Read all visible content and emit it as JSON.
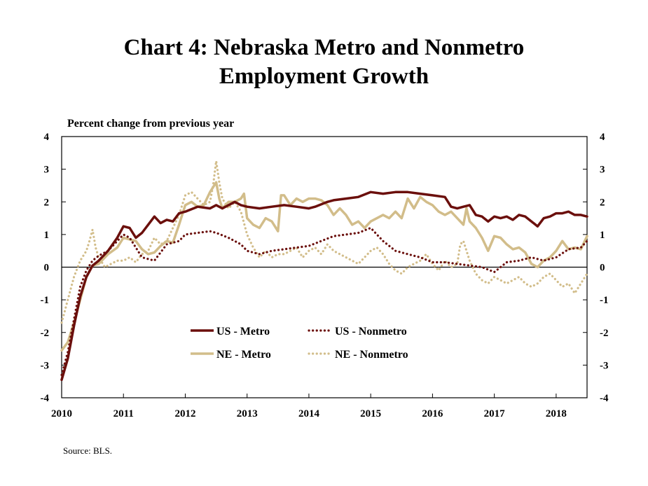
{
  "title_line1": "Chart 4: Nebraska Metro and Nonmetro",
  "title_line2": "Employment Growth",
  "unit_label": "Percent change from previous year",
  "source": "Source: BLS.",
  "colors": {
    "us_metro": "#6b0f0c",
    "us_nonmetro": "#6b0f0c",
    "ne_metro": "#d2bd8a",
    "ne_nonmetro": "#d2bd8a"
  },
  "chart_data": {
    "type": "line",
    "title": "Chart 4: Nebraska Metro and Nonmetro Employment Growth",
    "ylabel": "Percent change from previous year",
    "xlabel": "",
    "x_ticks": [
      "2010",
      "2011",
      "2012",
      "2013",
      "2014",
      "2015",
      "2016",
      "2017",
      "2018"
    ],
    "y_ticks": [
      -4,
      -3,
      -2,
      -1,
      0,
      1,
      2,
      3,
      4
    ],
    "ylim": [
      -4,
      4
    ],
    "xlim": [
      2010,
      2018.5
    ],
    "grid": false,
    "legend_position": "lower-center",
    "series": [
      {
        "name": "US - Metro",
        "style": "solid",
        "x": [
          2010.0,
          2010.1,
          2010.2,
          2010.3,
          2010.4,
          2010.5,
          2010.6,
          2010.75,
          2010.9,
          2011.0,
          2011.1,
          2011.2,
          2011.3,
          2011.4,
          2011.5,
          2011.6,
          2011.7,
          2011.8,
          2011.9,
          2012.0,
          2012.2,
          2012.4,
          2012.5,
          2012.6,
          2012.8,
          2012.9,
          2013.0,
          2013.2,
          2013.4,
          2013.6,
          2013.8,
          2014.0,
          2014.1,
          2014.3,
          2014.4,
          2014.6,
          2014.8,
          2015.0,
          2015.2,
          2015.4,
          2015.6,
          2015.8,
          2016.0,
          2016.2,
          2016.3,
          2016.4,
          2016.5,
          2016.6,
          2016.7,
          2016.8,
          2016.9,
          2017.0,
          2017.1,
          2017.2,
          2017.3,
          2017.4,
          2017.5,
          2017.6,
          2017.7,
          2017.8,
          2017.9,
          2018.0,
          2018.1,
          2018.2,
          2018.3,
          2018.4,
          2018.5
        ],
        "y": [
          -3.45,
          -2.8,
          -1.8,
          -0.9,
          -0.3,
          0.05,
          0.2,
          0.5,
          0.9,
          1.25,
          1.2,
          0.9,
          1.05,
          1.3,
          1.55,
          1.35,
          1.45,
          1.4,
          1.65,
          1.7,
          1.85,
          1.8,
          1.9,
          1.8,
          2.0,
          1.9,
          1.85,
          1.8,
          1.85,
          1.9,
          1.85,
          1.8,
          1.85,
          2.0,
          2.05,
          2.1,
          2.15,
          2.3,
          2.25,
          2.3,
          2.3,
          2.25,
          2.2,
          2.15,
          1.85,
          1.8,
          1.85,
          1.9,
          1.6,
          1.55,
          1.4,
          1.55,
          1.5,
          1.55,
          1.45,
          1.6,
          1.55,
          1.4,
          1.25,
          1.5,
          1.55,
          1.65,
          1.65,
          1.7,
          1.6,
          1.6,
          1.55
        ]
      },
      {
        "name": "US - Nonmetro",
        "style": "dotted",
        "x": [
          2010.0,
          2010.1,
          2010.2,
          2010.3,
          2010.4,
          2010.5,
          2010.6,
          2010.75,
          2010.9,
          2011.0,
          2011.1,
          2011.2,
          2011.3,
          2011.5,
          2011.7,
          2011.9,
          2012.0,
          2012.2,
          2012.4,
          2012.5,
          2012.7,
          2012.9,
          2013.0,
          2013.2,
          2013.4,
          2013.6,
          2013.8,
          2014.0,
          2014.2,
          2014.4,
          2014.6,
          2014.8,
          2015.0,
          2015.2,
          2015.4,
          2015.6,
          2015.8,
          2016.0,
          2016.2,
          2016.4,
          2016.6,
          2016.8,
          2017.0,
          2017.2,
          2017.4,
          2017.6,
          2017.8,
          2018.0,
          2018.2,
          2018.4,
          2018.5
        ],
        "y": [
          -3.3,
          -2.6,
          -1.6,
          -0.6,
          -0.1,
          0.2,
          0.35,
          0.5,
          0.8,
          1.0,
          0.9,
          0.6,
          0.3,
          0.2,
          0.7,
          0.8,
          1.0,
          1.05,
          1.1,
          1.05,
          0.9,
          0.7,
          0.5,
          0.4,
          0.5,
          0.55,
          0.6,
          0.65,
          0.8,
          0.95,
          1.0,
          1.05,
          1.2,
          0.8,
          0.5,
          0.4,
          0.3,
          0.15,
          0.15,
          0.1,
          0.05,
          0.0,
          -0.15,
          0.15,
          0.2,
          0.3,
          0.2,
          0.3,
          0.55,
          0.6,
          0.8
        ]
      },
      {
        "name": "NE - Metro",
        "style": "solid",
        "x": [
          2010.0,
          2010.1,
          2010.2,
          2010.3,
          2010.4,
          2010.5,
          2010.6,
          2010.75,
          2010.9,
          2011.0,
          2011.1,
          2011.2,
          2011.3,
          2011.4,
          2011.5,
          2011.6,
          2011.7,
          2011.8,
          2011.9,
          2012.0,
          2012.1,
          2012.2,
          2012.3,
          2012.4,
          2012.5,
          2012.55,
          2012.6,
          2012.7,
          2012.8,
          2012.9,
          2012.95,
          2013.0,
          2013.1,
          2013.2,
          2013.3,
          2013.4,
          2013.5,
          2013.55,
          2013.6,
          2013.7,
          2013.8,
          2013.9,
          2014.0,
          2014.1,
          2014.2,
          2014.3,
          2014.4,
          2014.5,
          2014.6,
          2014.7,
          2014.8,
          2014.9,
          2015.0,
          2015.1,
          2015.2,
          2015.3,
          2015.4,
          2015.5,
          2015.6,
          2015.7,
          2015.8,
          2015.9,
          2016.0,
          2016.1,
          2016.2,
          2016.3,
          2016.4,
          2016.5,
          2016.55,
          2016.6,
          2016.7,
          2016.8,
          2016.9,
          2017.0,
          2017.1,
          2017.2,
          2017.3,
          2017.4,
          2017.5,
          2017.6,
          2017.7,
          2017.8,
          2017.9,
          2018.0,
          2018.1,
          2018.2,
          2018.3,
          2018.4,
          2018.5
        ],
        "y": [
          -2.55,
          -2.3,
          -1.7,
          -1.0,
          -0.3,
          0.05,
          0.1,
          0.4,
          0.6,
          0.9,
          0.85,
          0.8,
          0.55,
          0.4,
          0.45,
          0.65,
          0.8,
          0.75,
          1.3,
          1.9,
          2.0,
          1.85,
          1.9,
          2.3,
          2.6,
          2.1,
          1.8,
          2.0,
          2.0,
          2.1,
          2.25,
          1.5,
          1.3,
          1.2,
          1.5,
          1.4,
          1.1,
          2.2,
          2.2,
          1.9,
          2.1,
          2.0,
          2.1,
          2.1,
          2.05,
          1.9,
          1.6,
          1.8,
          1.6,
          1.3,
          1.4,
          1.2,
          1.4,
          1.5,
          1.6,
          1.5,
          1.7,
          1.5,
          2.1,
          1.8,
          2.15,
          2.0,
          1.9,
          1.7,
          1.6,
          1.7,
          1.5,
          1.3,
          1.8,
          1.4,
          1.2,
          0.9,
          0.5,
          0.95,
          0.9,
          0.7,
          0.55,
          0.6,
          0.45,
          0.1,
          0.0,
          0.2,
          0.3,
          0.5,
          0.8,
          0.55,
          0.6,
          0.55,
          0.95
        ]
      },
      {
        "name": "NE - Nonmetro",
        "style": "dotted",
        "x": [
          2010.0,
          2010.1,
          2010.2,
          2010.3,
          2010.4,
          2010.45,
          2010.5,
          2010.55,
          2010.6,
          2010.7,
          2010.8,
          2010.9,
          2011.0,
          2011.1,
          2011.2,
          2011.3,
          2011.4,
          2011.5,
          2011.6,
          2011.7,
          2011.8,
          2011.9,
          2012.0,
          2012.1,
          2012.2,
          2012.3,
          2012.4,
          2012.45,
          2012.5,
          2012.55,
          2012.6,
          2012.7,
          2012.8,
          2012.9,
          2013.0,
          2013.1,
          2013.2,
          2013.3,
          2013.4,
          2013.5,
          2013.6,
          2013.7,
          2013.8,
          2013.9,
          2014.0,
          2014.1,
          2014.2,
          2014.3,
          2014.4,
          2014.5,
          2014.6,
          2014.7,
          2014.8,
          2014.9,
          2015.0,
          2015.1,
          2015.2,
          2015.3,
          2015.4,
          2015.5,
          2015.6,
          2015.7,
          2015.8,
          2015.9,
          2016.0,
          2016.1,
          2016.2,
          2016.3,
          2016.4,
          2016.45,
          2016.5,
          2016.6,
          2016.7,
          2016.8,
          2016.9,
          2017.0,
          2017.1,
          2017.2,
          2017.3,
          2017.4,
          2017.5,
          2017.6,
          2017.7,
          2017.8,
          2017.9,
          2018.0,
          2018.1,
          2018.2,
          2018.3,
          2018.4,
          2018.5
        ],
        "y": [
          -1.7,
          -1.0,
          -0.3,
          0.2,
          0.5,
          0.8,
          1.15,
          0.6,
          0.3,
          0.0,
          0.1,
          0.2,
          0.2,
          0.3,
          0.15,
          0.4,
          0.5,
          0.9,
          0.7,
          0.8,
          1.2,
          1.6,
          2.2,
          2.3,
          2.1,
          1.9,
          2.0,
          2.5,
          3.25,
          2.6,
          2.1,
          1.8,
          2.0,
          1.7,
          1.0,
          0.6,
          0.3,
          0.5,
          0.3,
          0.4,
          0.4,
          0.5,
          0.6,
          0.3,
          0.5,
          0.6,
          0.4,
          0.7,
          0.5,
          0.4,
          0.3,
          0.2,
          0.1,
          0.3,
          0.5,
          0.6,
          0.4,
          0.1,
          -0.1,
          -0.2,
          0.0,
          0.1,
          0.2,
          0.4,
          0.1,
          -0.1,
          0.2,
          0.0,
          0.1,
          0.7,
          0.8,
          0.2,
          -0.2,
          -0.4,
          -0.5,
          -0.3,
          -0.4,
          -0.5,
          -0.4,
          -0.3,
          -0.5,
          -0.6,
          -0.5,
          -0.3,
          -0.2,
          -0.4,
          -0.6,
          -0.5,
          -0.8,
          -0.5,
          -0.2
        ]
      }
    ]
  }
}
